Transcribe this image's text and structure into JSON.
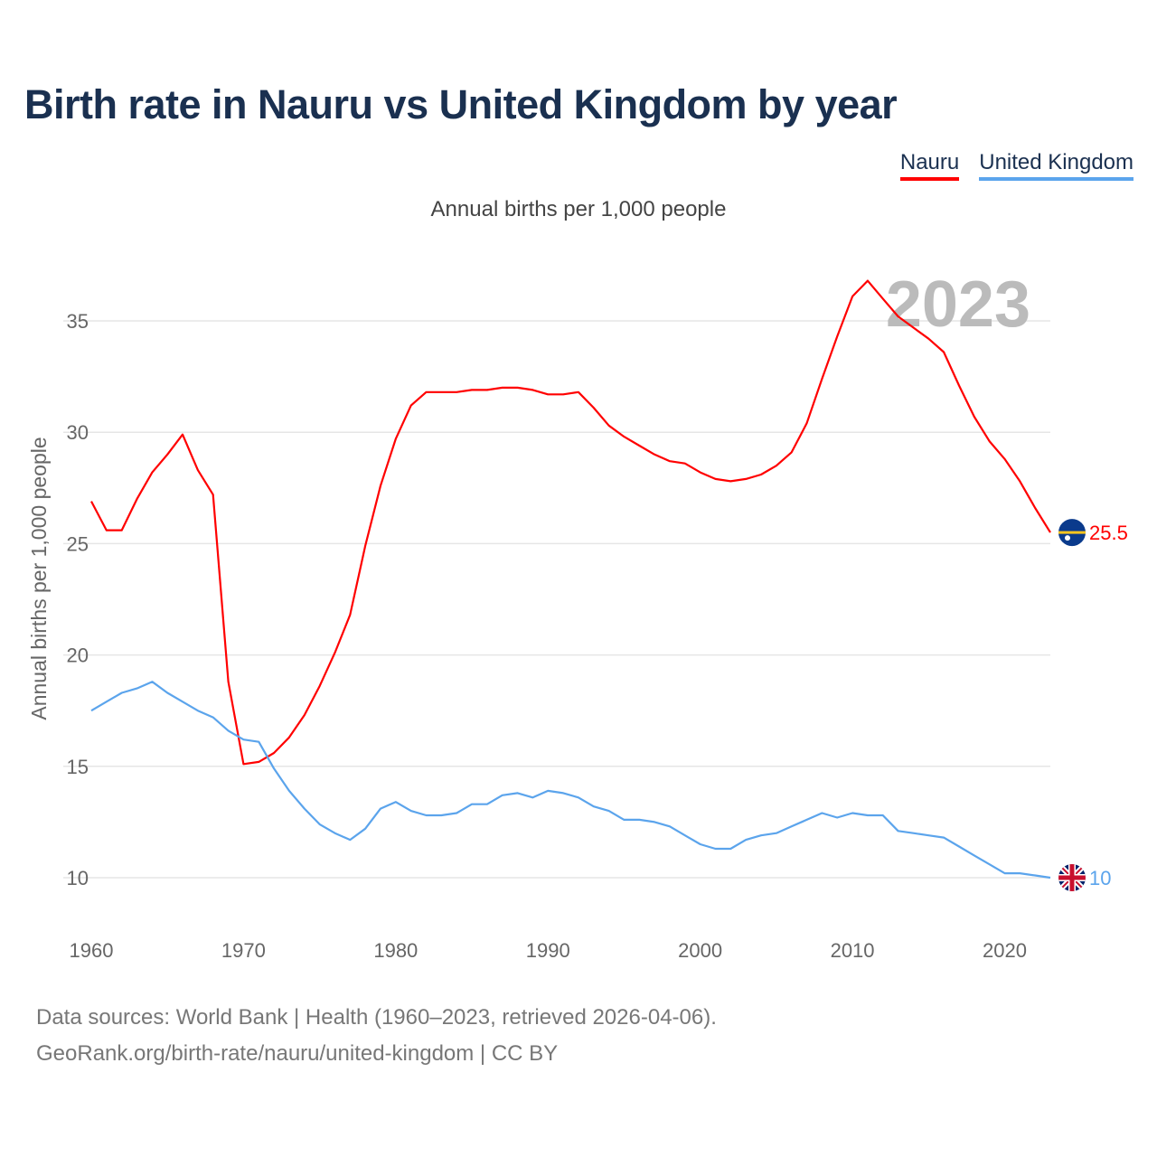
{
  "chart_data": {
    "type": "line",
    "title": "Birth rate in Nauru vs United Kingdom by year",
    "subtitle": "Annual births per 1,000 people",
    "ylabel": "Annual births per 1,000 people",
    "xlabel": "",
    "ylim": [
      7.5,
      37.5
    ],
    "xlim": [
      1960,
      2023
    ],
    "yticks": [
      10,
      15,
      20,
      25,
      30,
      35
    ],
    "xticks": [
      1960,
      1970,
      1980,
      1990,
      2000,
      2010,
      2020
    ],
    "grid": true,
    "legend_placement": "top-right",
    "year_label": "2023",
    "x": [
      1960,
      1961,
      1962,
      1963,
      1964,
      1965,
      1966,
      1967,
      1968,
      1969,
      1970,
      1971,
      1972,
      1973,
      1974,
      1975,
      1976,
      1977,
      1978,
      1979,
      1980,
      1981,
      1982,
      1983,
      1984,
      1985,
      1986,
      1987,
      1988,
      1989,
      1990,
      1991,
      1992,
      1993,
      1994,
      1995,
      1996,
      1997,
      1998,
      1999,
      2000,
      2001,
      2002,
      2003,
      2004,
      2005,
      2006,
      2007,
      2008,
      2009,
      2010,
      2011,
      2012,
      2013,
      2014,
      2015,
      2016,
      2017,
      2018,
      2019,
      2020,
      2021,
      2022,
      2023
    ],
    "series": [
      {
        "name": "Nauru",
        "color": "#ff0000",
        "end_label": "25.5",
        "values": [
          26.9,
          25.6,
          25.6,
          27.0,
          28.2,
          29.0,
          29.9,
          28.3,
          27.2,
          18.8,
          15.1,
          15.2,
          15.6,
          16.3,
          17.3,
          18.6,
          20.1,
          21.8,
          24.9,
          27.6,
          29.7,
          31.2,
          31.8,
          31.8,
          31.8,
          31.9,
          31.9,
          32.0,
          32.0,
          31.9,
          31.7,
          31.7,
          31.8,
          31.1,
          30.3,
          29.8,
          29.4,
          29.0,
          28.7,
          28.6,
          28.2,
          27.9,
          27.8,
          27.9,
          28.1,
          28.5,
          29.1,
          30.4,
          32.4,
          34.3,
          36.1,
          36.8,
          36.0,
          35.2,
          34.7,
          34.2,
          33.6,
          32.1,
          30.7,
          29.6,
          28.8,
          27.8,
          26.6,
          25.5
        ]
      },
      {
        "name": "United Kingdom",
        "color": "#5ba4ec",
        "end_label": "10",
        "values": [
          17.5,
          17.9,
          18.3,
          18.5,
          18.8,
          18.3,
          17.9,
          17.5,
          17.2,
          16.6,
          16.2,
          16.1,
          14.9,
          13.9,
          13.1,
          12.4,
          12.0,
          11.7,
          12.2,
          13.1,
          13.4,
          13.0,
          12.8,
          12.8,
          12.9,
          13.3,
          13.3,
          13.7,
          13.8,
          13.6,
          13.9,
          13.8,
          13.6,
          13.2,
          13.0,
          12.6,
          12.6,
          12.5,
          12.3,
          11.9,
          11.5,
          11.3,
          11.3,
          11.7,
          11.9,
          12.0,
          12.3,
          12.6,
          12.9,
          12.7,
          12.9,
          12.8,
          12.8,
          12.1,
          12.0,
          11.9,
          11.8,
          11.4,
          11.0,
          10.6,
          10.2,
          10.2,
          10.1,
          10.0
        ]
      }
    ]
  },
  "source_line1": "Data sources: World Bank | Health (1960–2023, retrieved 2026-04-06).",
  "source_line2": "GeoRank.org/birth-rate/nauru/united-kingdom | CC BY"
}
